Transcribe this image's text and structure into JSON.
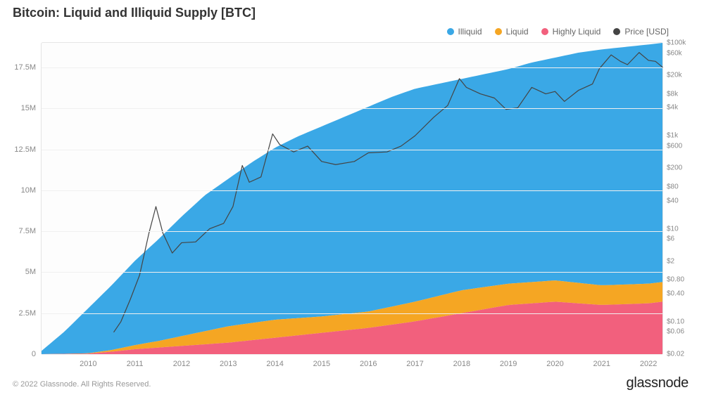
{
  "title": "Bitcoin: Liquid and Illiquid Supply [BTC]",
  "watermark": "glassnode",
  "footer": {
    "copyright": "© 2022 Glassnode. All Rights Reserved.",
    "brand": "glassnode"
  },
  "legend": {
    "items": [
      {
        "key": "illiquid",
        "label": "Illiquid",
        "color": "#3aa8e6"
      },
      {
        "key": "liquid",
        "label": "Liquid",
        "color": "#f5a623"
      },
      {
        "key": "highlyLiquid",
        "label": "Highly Liquid",
        "color": "#f2607d"
      },
      {
        "key": "price",
        "label": "Price [USD]",
        "color": "#444444"
      }
    ]
  },
  "chart": {
    "type": "stacked-area-with-line",
    "background_color": "#fdfdfd",
    "grid_color": "#f0f0f0",
    "border_color": "#e5e5e5",
    "title_fontsize": 18,
    "label_fontsize": 11,
    "right_label_fontsize": 10,
    "x": {
      "min": 2009.0,
      "max": 2022.3,
      "ticks": [
        2010,
        2011,
        2012,
        2013,
        2014,
        2015,
        2016,
        2017,
        2018,
        2019,
        2020,
        2021,
        2022
      ],
      "tick_labels": [
        "2010",
        "2011",
        "2012",
        "2013",
        "2014",
        "2015",
        "2016",
        "2017",
        "2018",
        "2019",
        "2020",
        "2021",
        "2022"
      ]
    },
    "yLeft": {
      "min": 0,
      "max": 19000000,
      "ticks": [
        0,
        2500000,
        5000000,
        7500000,
        10000000,
        12500000,
        15000000,
        17500000
      ],
      "tick_labels": [
        "0",
        "2.5M",
        "5M",
        "7.5M",
        "10M",
        "12.5M",
        "15M",
        "17.5M"
      ]
    },
    "yRight": {
      "scale": "log",
      "min": 0.02,
      "max": 100000,
      "ticks": [
        100000,
        60000,
        20000,
        8000,
        4000,
        1000,
        600,
        200,
        80,
        40,
        10,
        6,
        2,
        0.8,
        0.4,
        0.1,
        0.06,
        0.02
      ],
      "tick_labels": [
        "$100k",
        "$60k",
        "$20k",
        "$8k",
        "$4k",
        "$1k",
        "$600",
        "$200",
        "$80",
        "$40",
        "$10",
        "$6",
        "$2",
        "$0.80",
        "$0.40",
        "$0.10",
        "$0.06",
        "$0.02"
      ]
    },
    "series": {
      "highlyLiquid": {
        "color": "#f2607d",
        "points": [
          [
            2009.0,
            0
          ],
          [
            2010.0,
            30000
          ],
          [
            2010.5,
            150000
          ],
          [
            2011.0,
            300000
          ],
          [
            2011.5,
            400000
          ],
          [
            2012.0,
            500000
          ],
          [
            2013.0,
            700000
          ],
          [
            2014.0,
            1000000
          ],
          [
            2015.0,
            1300000
          ],
          [
            2016.0,
            1600000
          ],
          [
            2017.0,
            2000000
          ],
          [
            2018.0,
            2500000
          ],
          [
            2019.0,
            3000000
          ],
          [
            2020.0,
            3200000
          ],
          [
            2021.0,
            3000000
          ],
          [
            2022.0,
            3100000
          ],
          [
            2022.3,
            3200000
          ]
        ]
      },
      "liquid": {
        "color": "#f5a623",
        "points": [
          [
            2009.0,
            0
          ],
          [
            2010.0,
            50000
          ],
          [
            2010.5,
            250000
          ],
          [
            2011.0,
            550000
          ],
          [
            2011.5,
            800000
          ],
          [
            2012.0,
            1100000
          ],
          [
            2013.0,
            1700000
          ],
          [
            2014.0,
            2100000
          ],
          [
            2015.0,
            2300000
          ],
          [
            2016.0,
            2600000
          ],
          [
            2017.0,
            3200000
          ],
          [
            2018.0,
            3900000
          ],
          [
            2019.0,
            4300000
          ],
          [
            2020.0,
            4500000
          ],
          [
            2021.0,
            4200000
          ],
          [
            2022.0,
            4300000
          ],
          [
            2022.3,
            4400000
          ]
        ]
      },
      "illiquid": {
        "color": "#3aa8e6",
        "points": [
          [
            2009.0,
            200000
          ],
          [
            2009.5,
            1400000
          ],
          [
            2010.0,
            2800000
          ],
          [
            2010.5,
            4200000
          ],
          [
            2011.0,
            5700000
          ],
          [
            2011.5,
            7000000
          ],
          [
            2012.0,
            8400000
          ],
          [
            2012.5,
            9700000
          ],
          [
            2013.0,
            10700000
          ],
          [
            2013.5,
            11700000
          ],
          [
            2014.0,
            12600000
          ],
          [
            2014.5,
            13300000
          ],
          [
            2015.0,
            13900000
          ],
          [
            2015.5,
            14500000
          ],
          [
            2016.0,
            15100000
          ],
          [
            2016.5,
            15700000
          ],
          [
            2017.0,
            16200000
          ],
          [
            2017.5,
            16500000
          ],
          [
            2018.0,
            16800000
          ],
          [
            2018.5,
            17100000
          ],
          [
            2019.0,
            17400000
          ],
          [
            2019.5,
            17800000
          ],
          [
            2020.0,
            18100000
          ],
          [
            2020.5,
            18400000
          ],
          [
            2021.0,
            18600000
          ],
          [
            2021.5,
            18750000
          ],
          [
            2022.0,
            18900000
          ],
          [
            2022.3,
            19000000
          ]
        ]
      },
      "price": {
        "color": "#444444",
        "line_width": 1.2,
        "points": [
          [
            2010.55,
            0.06
          ],
          [
            2010.7,
            0.1
          ],
          [
            2010.9,
            0.3
          ],
          [
            2011.1,
            1.0
          ],
          [
            2011.3,
            8.0
          ],
          [
            2011.45,
            30
          ],
          [
            2011.6,
            8.0
          ],
          [
            2011.8,
            3.0
          ],
          [
            2012.0,
            5.0
          ],
          [
            2012.3,
            5.2
          ],
          [
            2012.6,
            10
          ],
          [
            2012.9,
            13
          ],
          [
            2013.1,
            30
          ],
          [
            2013.3,
            230
          ],
          [
            2013.45,
            100
          ],
          [
            2013.7,
            130
          ],
          [
            2013.95,
            1100
          ],
          [
            2014.1,
            650
          ],
          [
            2014.4,
            450
          ],
          [
            2014.7,
            600
          ],
          [
            2015.0,
            280
          ],
          [
            2015.3,
            240
          ],
          [
            2015.7,
            280
          ],
          [
            2016.0,
            430
          ],
          [
            2016.4,
            450
          ],
          [
            2016.7,
            600
          ],
          [
            2017.0,
            1000
          ],
          [
            2017.4,
            2500
          ],
          [
            2017.7,
            4500
          ],
          [
            2017.95,
            17000
          ],
          [
            2018.1,
            11000
          ],
          [
            2018.4,
            8000
          ],
          [
            2018.7,
            6500
          ],
          [
            2018.95,
            3700
          ],
          [
            2019.2,
            4000
          ],
          [
            2019.5,
            11000
          ],
          [
            2019.8,
            8000
          ],
          [
            2020.0,
            9000
          ],
          [
            2020.2,
            5500
          ],
          [
            2020.5,
            9500
          ],
          [
            2020.8,
            13000
          ],
          [
            2020.95,
            28000
          ],
          [
            2021.2,
            55000
          ],
          [
            2021.4,
            40000
          ],
          [
            2021.55,
            34000
          ],
          [
            2021.8,
            62000
          ],
          [
            2022.0,
            42000
          ],
          [
            2022.15,
            40000
          ],
          [
            2022.3,
            30000
          ]
        ]
      }
    }
  }
}
